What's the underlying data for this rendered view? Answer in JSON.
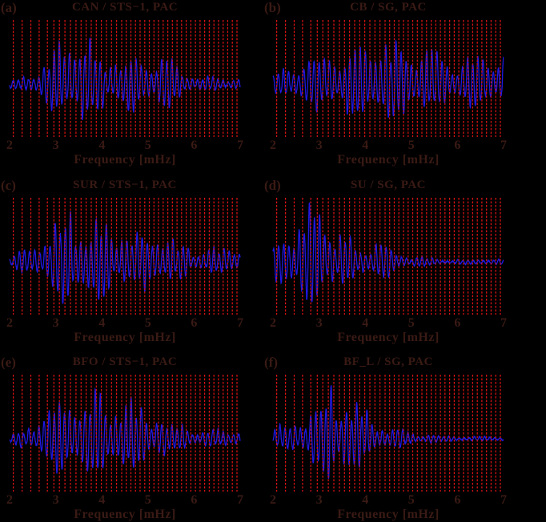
{
  "figure": {
    "background_color": "#000000",
    "text_color": "#3a1a14",
    "mode_line_color": "#dc1414",
    "trace_color": "#1f18e0"
  },
  "chart_data": {
    "type": "line",
    "description": "Six panels of long-period seismic amplitude spectra; red dashed vertical lines mark normal-mode eigenfrequencies",
    "xlabel": "Frequency [mHz]",
    "xlim": [
      2,
      7
    ],
    "xticks": [
      "2",
      "3",
      "4",
      "5",
      "6",
      "7"
    ],
    "xtick_values": [
      2,
      3,
      4,
      5,
      6,
      7
    ],
    "grid": false,
    "legend": false,
    "mode_line_style": "dashed",
    "mode_line_freqs_mHz": [
      2.08,
      2.27,
      2.46,
      2.64,
      2.82,
      2.96,
      3.08,
      3.2,
      3.32,
      3.44,
      3.55,
      3.66,
      3.77,
      3.88,
      3.99,
      4.1,
      4.21,
      4.32,
      4.43,
      4.53,
      4.63,
      4.73,
      4.83,
      4.93,
      5.03,
      5.13,
      5.23,
      5.33,
      5.43,
      5.53,
      5.63,
      5.73,
      5.83,
      5.93,
      6.03,
      6.13,
      6.23,
      6.33,
      6.43,
      6.53,
      6.63,
      6.73,
      6.83,
      6.93
    ],
    "envelope_x_mHz": [
      2.0,
      2.25,
      2.5,
      2.75,
      3.0,
      3.25,
      3.5,
      3.75,
      4.0,
      4.25,
      4.5,
      4.75,
      5.0,
      5.25,
      5.5,
      5.75,
      6.0,
      6.25,
      6.5,
      6.75,
      7.0
    ],
    "panels": [
      {
        "label": "(a)",
        "title": "CAN / STS−1, PAC",
        "station": "CAN",
        "instrument": "STS−1",
        "event": "PAC",
        "envelope": [
          0.1,
          0.16,
          0.22,
          0.4,
          0.62,
          0.88,
          1.0,
          0.85,
          0.78,
          0.76,
          0.62,
          0.5,
          0.55,
          0.48,
          0.4,
          0.3,
          0.22,
          0.17,
          0.13,
          0.12,
          0.13
        ],
        "seed": 101
      },
      {
        "label": "(b)",
        "title": "CB / SG, PAC",
        "station": "CB",
        "instrument": "SG",
        "event": "PAC",
        "envelope": [
          0.18,
          0.28,
          0.35,
          0.45,
          0.52,
          0.62,
          1.0,
          0.72,
          0.75,
          0.85,
          0.7,
          0.72,
          0.75,
          0.68,
          0.62,
          0.58,
          0.55,
          0.52,
          0.5,
          0.52,
          0.55
        ],
        "seed": 202
      },
      {
        "label": "(c)",
        "title": "SUR / STS−1, PAC",
        "station": "SUR",
        "instrument": "STS−1",
        "event": "PAC",
        "envelope": [
          0.15,
          0.2,
          0.28,
          0.42,
          0.65,
          1.0,
          0.9,
          0.85,
          0.8,
          0.78,
          0.72,
          0.58,
          0.52,
          0.48,
          0.42,
          0.36,
          0.32,
          0.28,
          0.26,
          0.24,
          0.26
        ],
        "seed": 303
      },
      {
        "label": "(d)",
        "title": "SU / SG, PAC",
        "station": "SU",
        "instrument": "SG",
        "event": "PAC",
        "envelope": [
          0.45,
          0.7,
          0.55,
          0.8,
          1.0,
          0.75,
          0.5,
          0.55,
          0.45,
          0.5,
          0.28,
          0.14,
          0.1,
          0.1,
          0.08,
          0.08,
          0.06,
          0.05,
          0.05,
          0.05,
          0.05
        ],
        "seed": 404
      },
      {
        "label": "(e)",
        "title": "BFO / STS−1, PAC",
        "station": "BFO",
        "instrument": "STS−1",
        "event": "PAC",
        "envelope": [
          0.13,
          0.18,
          0.25,
          0.45,
          0.68,
          0.85,
          1.0,
          0.92,
          0.85,
          0.82,
          0.78,
          0.6,
          0.5,
          0.45,
          0.38,
          0.3,
          0.24,
          0.2,
          0.18,
          0.17,
          0.18
        ],
        "seed": 505
      },
      {
        "label": "(f)",
        "title": "BF_L / SG, PAC",
        "station": "BF_L",
        "instrument": "SG",
        "event": "PAC",
        "envelope": [
          0.18,
          0.3,
          0.45,
          0.62,
          0.85,
          1.0,
          0.88,
          0.68,
          0.55,
          0.4,
          0.28,
          0.18,
          0.12,
          0.09,
          0.07,
          0.06,
          0.05,
          0.05,
          0.05,
          0.05,
          0.05
        ],
        "seed": 606
      }
    ]
  }
}
